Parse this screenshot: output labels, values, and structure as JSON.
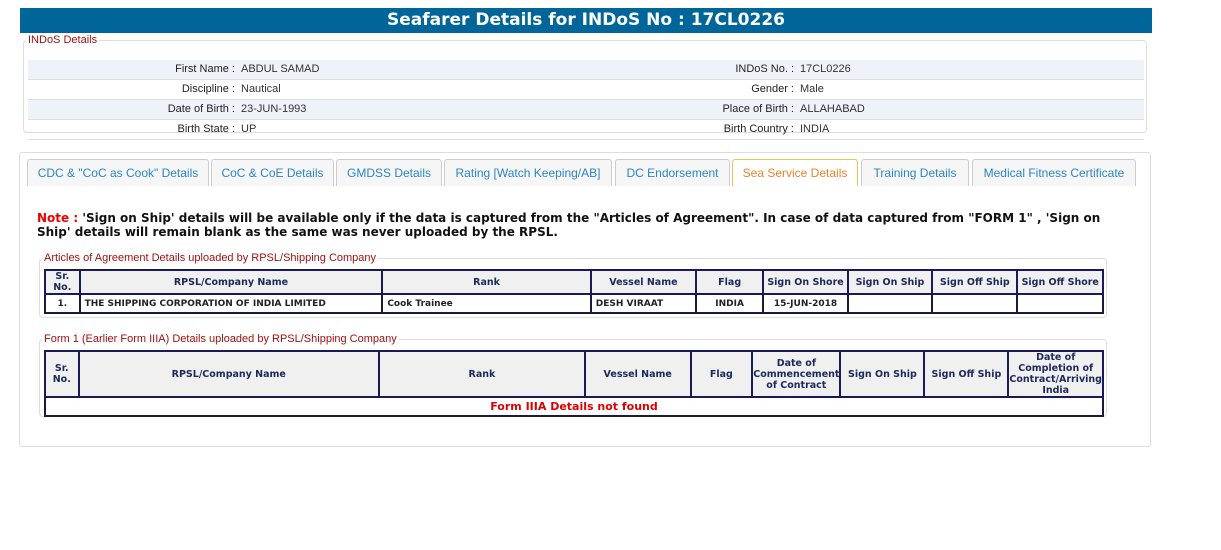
{
  "header": {
    "title": "Seafarer Details for INDoS No : 17CL0226"
  },
  "indos": {
    "legend": "INDoS Details",
    "rows": [
      {
        "l1": "First Name :",
        "v1": "ABDUL SAMAD",
        "l2": "INDoS No. :",
        "v2": "17CL0226"
      },
      {
        "l1": "Discipline :",
        "v1": "Nautical",
        "l2": "Gender :",
        "v2": "Male"
      },
      {
        "l1": "Date of Birth :",
        "v1": "23-JUN-1993",
        "l2": "Place of Birth :",
        "v2": "ALLAHABAD"
      },
      {
        "l1": "Birth State :",
        "v1": "UP",
        "l2": "Birth Country :",
        "v2": "INDIA"
      }
    ]
  },
  "tabs": [
    "CDC & \"CoC as Cook\" Details",
    "CoC & CoE Details",
    "GMDSS Details",
    "Rating [Watch Keeping/AB]",
    "DC Endorsement",
    "Sea Service Details",
    "Training Details",
    "Medical Fitness Certificate"
  ],
  "active_tab": "Sea Service Details",
  "note": {
    "label": "Note :",
    "text": " 'Sign on Ship' details will be available only if the data is captured from the \"Articles of Agreement\". In case of data captured from \"FORM 1\" , 'Sign on Ship' details will remain blank as the same was never uploaded by the RPSL."
  },
  "articles": {
    "legend": "Articles of Agreement Details uploaded by RPSL/Shipping Company",
    "headers": [
      "Sr. No.",
      "RPSL/Company Name",
      "Rank",
      "Vessel Name",
      "Flag",
      "Sign On Shore",
      "Sign On Ship",
      "Sign Off Ship",
      "Sign Off Shore"
    ],
    "rows": [
      [
        "1.",
        "THE SHIPPING CORPORATION OF INDIA LIMITED",
        "Cook Trainee",
        "DESH VIRAAT",
        "INDIA",
        "15-JUN-2018",
        "",
        "",
        ""
      ]
    ]
  },
  "form1": {
    "legend": "Form 1 (Earlier Form IIIA) Details uploaded by RPSL/Shipping Company",
    "headers": [
      "Sr. No.",
      "RPSL/Company Name",
      "Rank",
      "Vessel Name",
      "Flag",
      "Date of Commencement of Contract",
      "Sign On Ship",
      "Sign Off Ship",
      "Date of Completion of Contract/Arriving India"
    ],
    "empty": "Form IIIA Details not found"
  }
}
